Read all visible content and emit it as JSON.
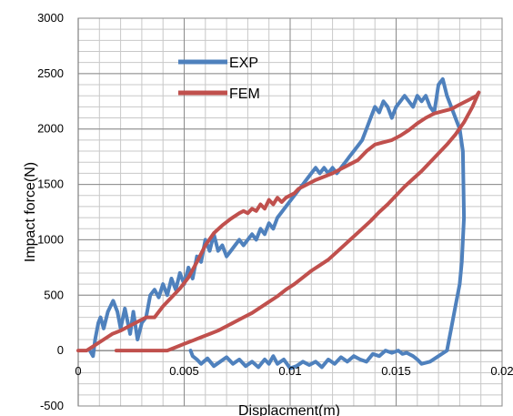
{
  "chart_data": {
    "type": "line",
    "title": "",
    "xlabel": "Displacment(m)",
    "ylabel": "Impact force(N)",
    "xlim": [
      0,
      0.02
    ],
    "ylim": [
      -500,
      3000
    ],
    "x_ticks": [
      0,
      0.005,
      0.01,
      0.015,
      0.02
    ],
    "x_tick_labels": [
      "0",
      "0.005",
      "0.01",
      "0.015",
      "0.02"
    ],
    "y_ticks": [
      -500,
      0,
      500,
      1000,
      1500,
      2000,
      2500,
      3000
    ],
    "y_tick_labels": [
      "-500",
      "0",
      "500",
      "1000",
      "1500",
      "2000",
      "2500",
      "3000"
    ],
    "grid": true,
    "legend_position": "upper-left-inside",
    "series": [
      {
        "name": "EXP",
        "color": "#4F81BD",
        "points": [
          [
            0.00055,
            0
          ],
          [
            0.0007,
            -50
          ],
          [
            0.0008,
            100
          ],
          [
            0.00095,
            250
          ],
          [
            0.00105,
            300
          ],
          [
            0.0012,
            200
          ],
          [
            0.0014,
            350
          ],
          [
            0.00165,
            450
          ],
          [
            0.00185,
            350
          ],
          [
            0.002,
            200
          ],
          [
            0.0022,
            380
          ],
          [
            0.00245,
            150
          ],
          [
            0.0026,
            350
          ],
          [
            0.0028,
            100
          ],
          [
            0.003,
            250
          ],
          [
            0.0032,
            300
          ],
          [
            0.0034,
            500
          ],
          [
            0.0036,
            550
          ],
          [
            0.0038,
            480
          ],
          [
            0.004,
            600
          ],
          [
            0.0042,
            500
          ],
          [
            0.0044,
            650
          ],
          [
            0.0046,
            550
          ],
          [
            0.0048,
            700
          ],
          [
            0.005,
            600
          ],
          [
            0.0052,
            750
          ],
          [
            0.0054,
            650
          ],
          [
            0.0056,
            850
          ],
          [
            0.0058,
            800
          ],
          [
            0.006,
            1000
          ],
          [
            0.0062,
            900
          ],
          [
            0.0064,
            1050
          ],
          [
            0.0066,
            900
          ],
          [
            0.0068,
            950
          ],
          [
            0.007,
            850
          ],
          [
            0.0072,
            900
          ],
          [
            0.0074,
            950
          ],
          [
            0.0076,
            1000
          ],
          [
            0.0078,
            950
          ],
          [
            0.008,
            1000
          ],
          [
            0.0082,
            1050
          ],
          [
            0.0084,
            1000
          ],
          [
            0.0086,
            1100
          ],
          [
            0.0088,
            1050
          ],
          [
            0.009,
            1150
          ],
          [
            0.0092,
            1100
          ],
          [
            0.0094,
            1200
          ],
          [
            0.0096,
            1250
          ],
          [
            0.0098,
            1300
          ],
          [
            0.01,
            1350
          ],
          [
            0.0102,
            1400
          ],
          [
            0.0104,
            1450
          ],
          [
            0.0106,
            1500
          ],
          [
            0.0108,
            1550
          ],
          [
            0.011,
            1600
          ],
          [
            0.0112,
            1650
          ],
          [
            0.0114,
            1600
          ],
          [
            0.0116,
            1650
          ],
          [
            0.0118,
            1600
          ],
          [
            0.012,
            1650
          ],
          [
            0.0122,
            1600
          ],
          [
            0.0124,
            1650
          ],
          [
            0.0126,
            1700
          ],
          [
            0.0128,
            1750
          ],
          [
            0.013,
            1800
          ],
          [
            0.0132,
            1850
          ],
          [
            0.0134,
            1900
          ],
          [
            0.0136,
            2000
          ],
          [
            0.0138,
            2100
          ],
          [
            0.014,
            2200
          ],
          [
            0.0142,
            2150
          ],
          [
            0.0144,
            2250
          ],
          [
            0.0146,
            2200
          ],
          [
            0.0148,
            2100
          ],
          [
            0.015,
            2200
          ],
          [
            0.0152,
            2250
          ],
          [
            0.0154,
            2300
          ],
          [
            0.0156,
            2250
          ],
          [
            0.0158,
            2200
          ],
          [
            0.016,
            2300
          ],
          [
            0.0162,
            2250
          ],
          [
            0.0164,
            2300
          ],
          [
            0.0166,
            2200
          ],
          [
            0.0168,
            2150
          ],
          [
            0.017,
            2400
          ],
          [
            0.0172,
            2450
          ],
          [
            0.0174,
            2300
          ],
          [
            0.0176,
            2200
          ],
          [
            0.0178,
            2100
          ],
          [
            0.018,
            2000
          ],
          [
            0.01815,
            1800
          ],
          [
            0.0182,
            1200
          ],
          [
            0.0181,
            800
          ],
          [
            0.018,
            600
          ],
          [
            0.0178,
            400
          ],
          [
            0.0176,
            200
          ],
          [
            0.0174,
            0
          ],
          [
            0.017,
            -50
          ],
          [
            0.0166,
            -100
          ],
          [
            0.0162,
            -120
          ],
          [
            0.016,
            -80
          ],
          [
            0.0158,
            -50
          ],
          [
            0.0155,
            -20
          ],
          [
            0.0153,
            -30
          ],
          [
            0.0151,
            0
          ],
          [
            0.0148,
            -20
          ],
          [
            0.0145,
            0
          ],
          [
            0.0142,
            -50
          ],
          [
            0.0139,
            -30
          ],
          [
            0.0136,
            -100
          ],
          [
            0.0133,
            -80
          ],
          [
            0.013,
            -50
          ],
          [
            0.0127,
            -100
          ],
          [
            0.0124,
            -60
          ],
          [
            0.0121,
            -120
          ],
          [
            0.0118,
            -80
          ],
          [
            0.0115,
            -150
          ],
          [
            0.0112,
            -100
          ],
          [
            0.0109,
            -130
          ],
          [
            0.0106,
            -100
          ],
          [
            0.0103,
            -140
          ],
          [
            0.01,
            -160
          ],
          [
            0.0097,
            -80
          ],
          [
            0.0094,
            -120
          ],
          [
            0.0092,
            -50
          ],
          [
            0.009,
            -120
          ],
          [
            0.0088,
            -80
          ],
          [
            0.0085,
            -150
          ],
          [
            0.0082,
            -100
          ],
          [
            0.0079,
            -140
          ],
          [
            0.0076,
            -80
          ],
          [
            0.0073,
            -120
          ],
          [
            0.007,
            -60
          ],
          [
            0.0067,
            -100
          ],
          [
            0.0064,
            -140
          ],
          [
            0.0061,
            -70
          ],
          [
            0.0058,
            -120
          ],
          [
            0.0056,
            -80
          ],
          [
            0.0054,
            -50
          ],
          [
            0.0053,
            0
          ]
        ]
      },
      {
        "name": "FEM",
        "color": "#C0504D",
        "points": [
          [
            0,
            0
          ],
          [
            0.0004,
            0
          ],
          [
            0.0008,
            50
          ],
          [
            0.0012,
            100
          ],
          [
            0.0016,
            150
          ],
          [
            0.002,
            180
          ],
          [
            0.0024,
            220
          ],
          [
            0.0028,
            260
          ],
          [
            0.0032,
            300
          ],
          [
            0.0036,
            300
          ],
          [
            0.004,
            400
          ],
          [
            0.0044,
            480
          ],
          [
            0.0048,
            560
          ],
          [
            0.0052,
            660
          ],
          [
            0.0056,
            800
          ],
          [
            0.006,
            950
          ],
          [
            0.0064,
            1060
          ],
          [
            0.0068,
            1130
          ],
          [
            0.0072,
            1190
          ],
          [
            0.0076,
            1240
          ],
          [
            0.0078,
            1260
          ],
          [
            0.008,
            1240
          ],
          [
            0.0082,
            1280
          ],
          [
            0.0084,
            1260
          ],
          [
            0.0086,
            1320
          ],
          [
            0.0088,
            1280
          ],
          [
            0.009,
            1360
          ],
          [
            0.0092,
            1320
          ],
          [
            0.0094,
            1380
          ],
          [
            0.0096,
            1340
          ],
          [
            0.0098,
            1380
          ],
          [
            0.01,
            1400
          ],
          [
            0.0102,
            1420
          ],
          [
            0.0104,
            1460
          ],
          [
            0.0108,
            1500
          ],
          [
            0.0112,
            1540
          ],
          [
            0.0116,
            1570
          ],
          [
            0.012,
            1600
          ],
          [
            0.0124,
            1640
          ],
          [
            0.0128,
            1680
          ],
          [
            0.0132,
            1720
          ],
          [
            0.0136,
            1800
          ],
          [
            0.014,
            1860
          ],
          [
            0.0144,
            1880
          ],
          [
            0.0148,
            1900
          ],
          [
            0.0152,
            1940
          ],
          [
            0.0156,
            1990
          ],
          [
            0.016,
            2050
          ],
          [
            0.0164,
            2100
          ],
          [
            0.0168,
            2140
          ],
          [
            0.0172,
            2160
          ],
          [
            0.0176,
            2180
          ],
          [
            0.018,
            2220
          ],
          [
            0.0184,
            2260
          ],
          [
            0.0188,
            2300
          ],
          [
            0.0189,
            2330
          ],
          [
            0.0186,
            2200
          ],
          [
            0.0182,
            2060
          ],
          [
            0.0178,
            1950
          ],
          [
            0.0174,
            1860
          ],
          [
            0.017,
            1780
          ],
          [
            0.0166,
            1700
          ],
          [
            0.0162,
            1620
          ],
          [
            0.0158,
            1550
          ],
          [
            0.0154,
            1480
          ],
          [
            0.015,
            1400
          ],
          [
            0.0146,
            1320
          ],
          [
            0.0142,
            1250
          ],
          [
            0.0138,
            1170
          ],
          [
            0.0134,
            1100
          ],
          [
            0.013,
            1030
          ],
          [
            0.0126,
            960
          ],
          [
            0.0122,
            890
          ],
          [
            0.0118,
            820
          ],
          [
            0.0114,
            770
          ],
          [
            0.011,
            720
          ],
          [
            0.0106,
            660
          ],
          [
            0.0102,
            600
          ],
          [
            0.0098,
            550
          ],
          [
            0.0094,
            490
          ],
          [
            0.009,
            440
          ],
          [
            0.0086,
            390
          ],
          [
            0.0082,
            340
          ],
          [
            0.0078,
            300
          ],
          [
            0.0074,
            260
          ],
          [
            0.007,
            220
          ],
          [
            0.0066,
            180
          ],
          [
            0.0062,
            150
          ],
          [
            0.0058,
            120
          ],
          [
            0.0054,
            90
          ],
          [
            0.005,
            60
          ],
          [
            0.0046,
            30
          ],
          [
            0.0042,
            0
          ],
          [
            0.0038,
            0
          ],
          [
            0.0034,
            0
          ],
          [
            0.003,
            0
          ],
          [
            0.0026,
            0
          ],
          [
            0.0022,
            0
          ],
          [
            0.0018,
            0
          ]
        ]
      }
    ]
  }
}
